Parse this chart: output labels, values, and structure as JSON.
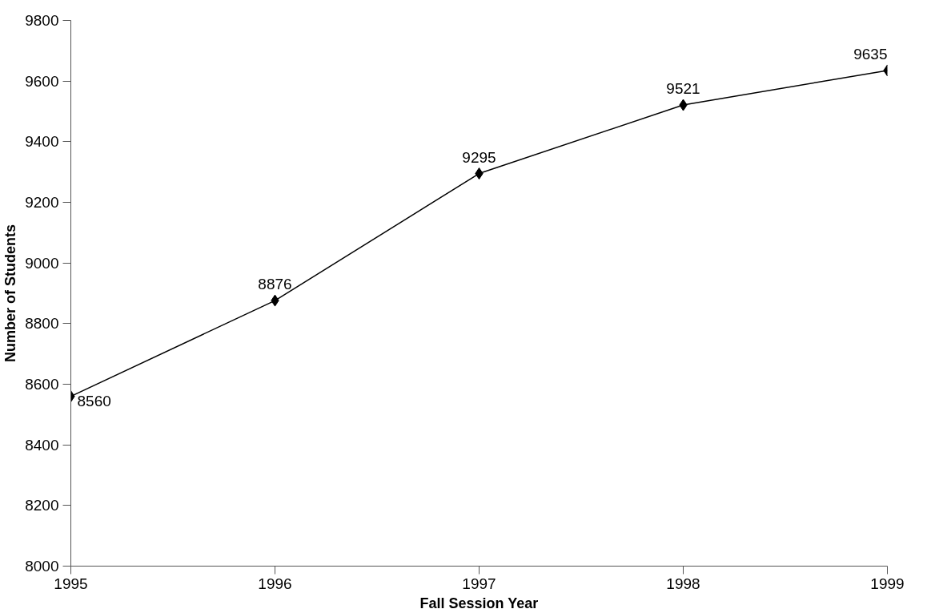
{
  "chart_data": {
    "type": "line",
    "xlabel": "Fall Session Year",
    "ylabel": "Number of Students",
    "x": [
      1995,
      1996,
      1997,
      1998,
      1999
    ],
    "series": [
      {
        "color": "#000000",
        "values": [
          8560,
          8876,
          9295,
          9521,
          9635
        ]
      }
    ],
    "xlim": [
      1995,
      1999
    ],
    "xticks": [
      1995,
      1996,
      1997,
      1998,
      1999
    ],
    "ylim": [
      8000,
      9800
    ],
    "yticks": [
      8000,
      8200,
      8400,
      8600,
      8800,
      9000,
      9200,
      9400,
      9600,
      9800
    ],
    "grid": false,
    "marker": "diamond",
    "line_style": "solid",
    "data_labels": true
  }
}
